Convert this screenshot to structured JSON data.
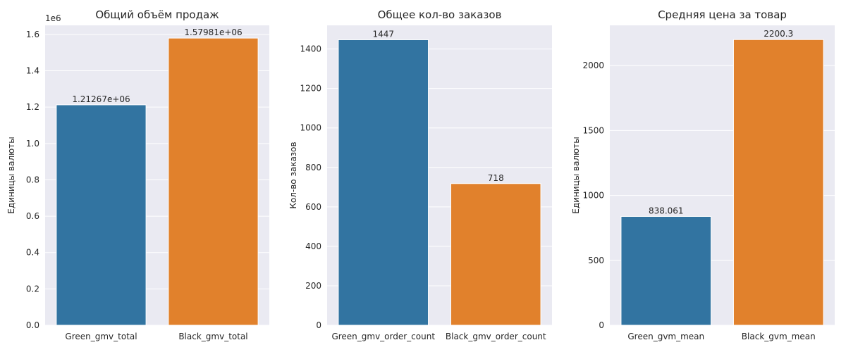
{
  "chart_data": [
    {
      "type": "bar",
      "title": "Общий объём продаж",
      "ylabel": "Единицы валюты",
      "xlabel": "",
      "categories": [
        "Green_gmv_total",
        "Black_gmv_total"
      ],
      "values": [
        1212670,
        1579810
      ],
      "data_labels": [
        "1.21267e+06",
        "1.57981e+06"
      ],
      "colors": [
        "#3274a1",
        "#e1812c"
      ],
      "ylim": [
        0,
        1650000
      ],
      "yticks": [
        0,
        200000,
        400000,
        600000,
        800000,
        1000000,
        1200000,
        1400000,
        1600000
      ],
      "ytick_labels": [
        "0.0",
        "0.2",
        "0.4",
        "0.6",
        "0.8",
        "1.0",
        "1.2",
        "1.4",
        "1.6"
      ],
      "y_offset_label": "1e6",
      "grid": true
    },
    {
      "type": "bar",
      "title": "Общее кол-во заказов",
      "ylabel": "Кол-во заказов",
      "xlabel": "",
      "categories": [
        "Green_gmv_order_count",
        "Black_gmv_order_count"
      ],
      "values": [
        1447,
        718
      ],
      "data_labels": [
        "1447",
        "718"
      ],
      "colors": [
        "#3274a1",
        "#e1812c"
      ],
      "ylim": [
        0,
        1520
      ],
      "yticks": [
        0,
        200,
        400,
        600,
        800,
        1000,
        1200,
        1400
      ],
      "ytick_labels": [
        "0",
        "200",
        "400",
        "600",
        "800",
        "1000",
        "1200",
        "1400"
      ],
      "grid": true
    },
    {
      "type": "bar",
      "title": "Средняя цена за товар",
      "ylabel": "Единицы валюты",
      "xlabel": "",
      "categories": [
        "Green_gvm_mean",
        "Black_gvm_mean"
      ],
      "values": [
        838.061,
        2200.3
      ],
      "data_labels": [
        "838.061",
        "2200.3"
      ],
      "colors": [
        "#3274a1",
        "#e1812c"
      ],
      "ylim": [
        0,
        2310
      ],
      "yticks": [
        0,
        500,
        1000,
        1500,
        2000
      ],
      "ytick_labels": [
        "0",
        "500",
        "1000",
        "1500",
        "2000"
      ],
      "grid": true
    }
  ]
}
